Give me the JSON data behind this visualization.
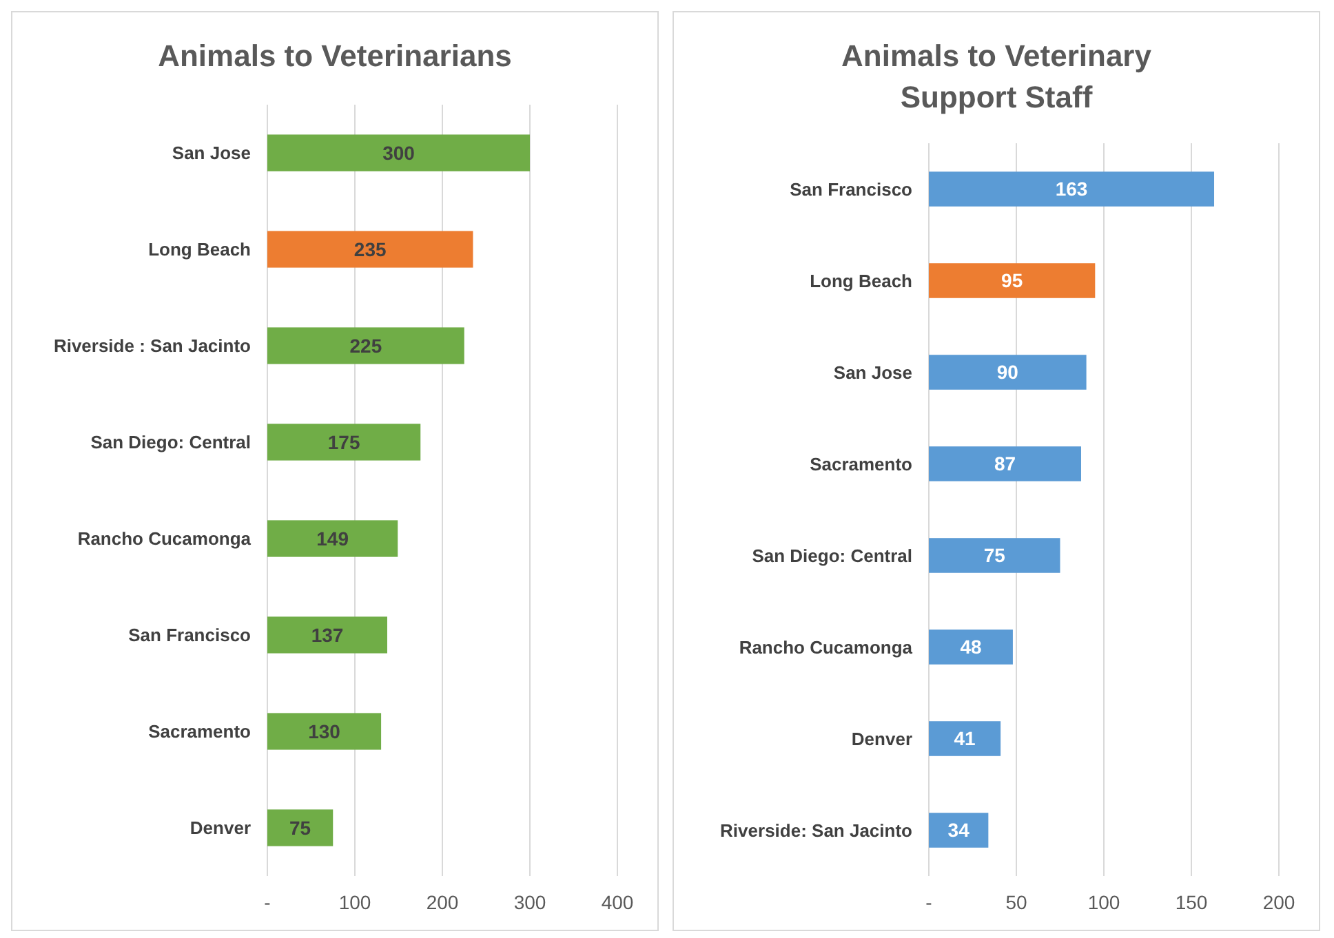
{
  "chart_data": [
    {
      "type": "bar",
      "orientation": "horizontal",
      "title": "Animals to Veterinarians",
      "categories": [
        "San Jose",
        "Long Beach",
        "Riverside : San Jacinto",
        "San Diego: Central",
        "Rancho Cucamonga",
        "San Francisco",
        "Sacramento",
        "Denver"
      ],
      "values": [
        300,
        235,
        225,
        175,
        149,
        137,
        130,
        75
      ],
      "colors": [
        "#70ad47",
        "#ed7d31",
        "#70ad47",
        "#70ad47",
        "#70ad47",
        "#70ad47",
        "#70ad47",
        "#70ad47"
      ],
      "xlim": [
        0,
        400
      ],
      "xticks": [
        {
          "value": 0,
          "label": "-"
        },
        100,
        200,
        300,
        400
      ],
      "grid": "x",
      "data_labels": true
    },
    {
      "type": "bar",
      "orientation": "horizontal",
      "title": "Animals to Veterinary Support Staff",
      "categories": [
        "San Francisco",
        "Long Beach",
        "San Jose",
        "Sacramento",
        "San Diego: Central",
        "Rancho Cucamonga",
        "Denver",
        "Riverside: San Jacinto"
      ],
      "values": [
        163,
        95,
        90,
        87,
        75,
        48,
        41,
        34
      ],
      "colors": [
        "#5b9bd5",
        "#ed7d31",
        "#5b9bd5",
        "#5b9bd5",
        "#5b9bd5",
        "#5b9bd5",
        "#5b9bd5",
        "#5b9bd5"
      ],
      "xlim": [
        0,
        200
      ],
      "xticks": [
        {
          "value": 0,
          "label": "-"
        },
        50,
        100,
        150,
        200
      ],
      "grid": "x",
      "data_labels": true
    }
  ]
}
